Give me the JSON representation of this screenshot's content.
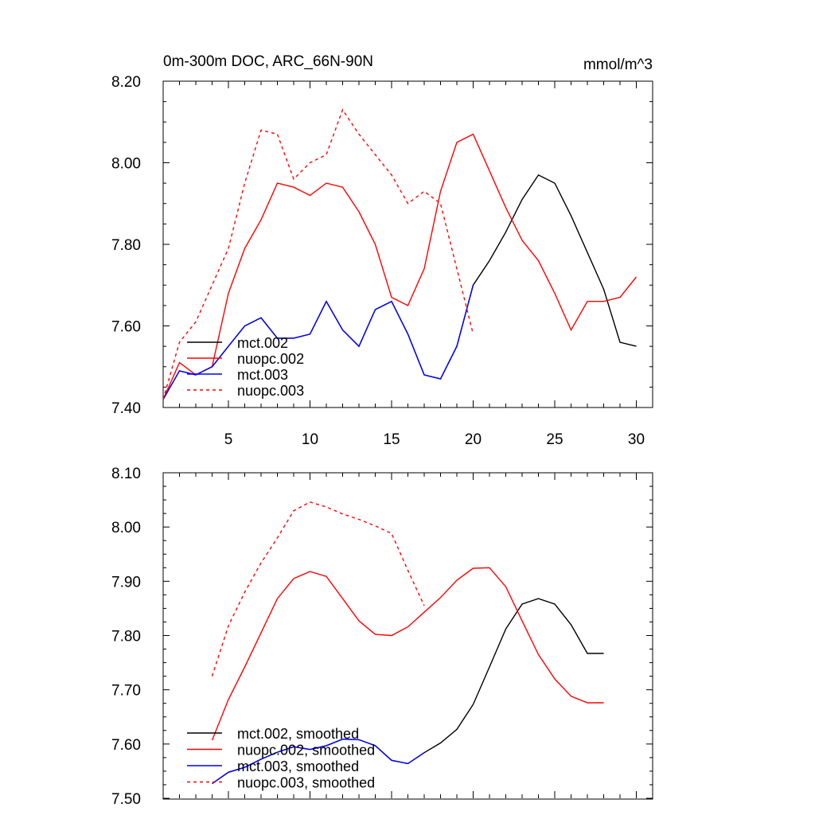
{
  "header": {
    "title": "0m-300m DOC, ARC_66N-90N",
    "units": "mmol/m^3"
  },
  "chart_data": [
    {
      "type": "line",
      "title": "0m-300m DOC, ARC_66N-90N",
      "ylabel_right": "mmol/m^3",
      "xlim": [
        1,
        31
      ],
      "ylim": [
        7.4,
        8.2
      ],
      "x_ticks": [
        5,
        10,
        15,
        20,
        25,
        30
      ],
      "x_tick_labels": [
        "5",
        "10",
        "15",
        "20",
        "25",
        "30"
      ],
      "y_ticks": [
        7.4,
        7.6,
        7.8,
        8.0,
        8.2
      ],
      "y_tick_labels": [
        "7.40",
        "7.60",
        "7.80",
        "8.00",
        "8.20"
      ],
      "grid": false,
      "legend_position": "bottom-left",
      "series": [
        {
          "name": "mct.002",
          "color": "#000000",
          "dash": "solid",
          "x": [
            1,
            2,
            3,
            4,
            5,
            6,
            7,
            8,
            9,
            10,
            11,
            12,
            13,
            14,
            15,
            16,
            17,
            18,
            19,
            20,
            21,
            22,
            23,
            24,
            25,
            26,
            27,
            28,
            29,
            30
          ],
          "y": [
            7.42,
            7.49,
            7.48,
            7.5,
            7.55,
            7.6,
            7.62,
            7.57,
            7.57,
            7.58,
            7.66,
            7.59,
            7.55,
            7.64,
            7.66,
            7.58,
            7.48,
            7.47,
            7.55,
            7.7,
            7.76,
            7.83,
            7.91,
            7.97,
            7.95,
            7.87,
            7.78,
            7.69,
            7.56,
            7.55
          ]
        },
        {
          "name": "nuopc.002",
          "color": "#ff0000",
          "dash": "solid",
          "x": [
            1,
            2,
            3,
            4,
            5,
            6,
            7,
            8,
            9,
            10,
            11,
            12,
            13,
            14,
            15,
            16,
            17,
            18,
            19,
            20,
            21,
            22,
            23,
            24,
            25,
            26,
            27,
            28,
            29,
            30
          ],
          "y": [
            7.42,
            7.51,
            7.48,
            7.5,
            7.68,
            7.79,
            7.86,
            7.95,
            7.94,
            7.92,
            7.95,
            7.94,
            7.88,
            7.8,
            7.67,
            7.65,
            7.74,
            7.93,
            8.05,
            8.07,
            7.98,
            7.89,
            7.81,
            7.76,
            7.68,
            7.59,
            7.66,
            7.66,
            7.67,
            7.72
          ]
        },
        {
          "name": "mct.003",
          "color": "#0000ff",
          "dash": "solid",
          "x": [
            1,
            2,
            3,
            4,
            5,
            6,
            7,
            8,
            9,
            10,
            11,
            12,
            13,
            14,
            15,
            16,
            17,
            18,
            19,
            20
          ],
          "y": [
            7.42,
            7.49,
            7.48,
            7.5,
            7.55,
            7.6,
            7.62,
            7.57,
            7.57,
            7.58,
            7.66,
            7.59,
            7.55,
            7.64,
            7.66,
            7.58,
            7.48,
            7.47,
            7.55,
            7.7
          ]
        },
        {
          "name": "nuopc.003",
          "color": "#ff0000",
          "dash": "dashed",
          "x": [
            1,
            2,
            3,
            4,
            5,
            6,
            7,
            8,
            9,
            10,
            11,
            12,
            13,
            14,
            15,
            16,
            17,
            18,
            19,
            20
          ],
          "y": [
            7.42,
            7.56,
            7.61,
            7.7,
            7.79,
            7.95,
            8.08,
            8.07,
            7.96,
            8.0,
            8.02,
            8.13,
            8.07,
            8.02,
            7.97,
            7.9,
            7.93,
            7.9,
            7.74,
            7.58
          ]
        }
      ]
    },
    {
      "type": "line",
      "xlim": [
        1,
        31
      ],
      "ylim": [
        7.5,
        8.1
      ],
      "x_ticks": [
        5,
        10,
        15,
        20,
        25,
        30
      ],
      "y_ticks": [
        7.5,
        7.6,
        7.7,
        7.8,
        7.9,
        8.0,
        8.1
      ],
      "y_tick_labels": [
        "7.50",
        "7.60",
        "7.70",
        "7.80",
        "7.90",
        "8.00",
        "8.10"
      ],
      "grid": false,
      "legend_position": "bottom-left",
      "series": [
        {
          "name": "mct.002, smoothed",
          "color": "#000000",
          "dash": "solid",
          "x": [
            4,
            5,
            6,
            7,
            8,
            9,
            10,
            11,
            12,
            13,
            14,
            15,
            16,
            17,
            18,
            19,
            20,
            21,
            22,
            23,
            24,
            25,
            26,
            27,
            28
          ],
          "y": [
            7.527,
            7.548,
            7.557,
            7.572,
            7.585,
            7.595,
            7.59,
            7.597,
            7.609,
            7.608,
            7.597,
            7.57,
            7.564,
            7.584,
            7.602,
            7.627,
            7.673,
            7.742,
            7.812,
            7.858,
            7.868,
            7.858,
            7.82,
            7.767,
            7.767
          ]
        },
        {
          "name": "nuopc.002, smoothed",
          "color": "#ff0000",
          "dash": "solid",
          "x": [
            4,
            5,
            6,
            7,
            8,
            9,
            10,
            11,
            12,
            13,
            14,
            15,
            16,
            17,
            18,
            19,
            20,
            21,
            22,
            23,
            24,
            25,
            26,
            27,
            28
          ],
          "y": [
            7.607,
            7.682,
            7.742,
            7.805,
            7.868,
            7.905,
            7.918,
            7.909,
            7.868,
            7.827,
            7.802,
            7.8,
            7.816,
            7.843,
            7.87,
            7.902,
            7.924,
            7.925,
            7.89,
            7.827,
            7.765,
            7.72,
            7.688,
            7.676,
            7.676
          ]
        },
        {
          "name": "mct.003, smoothed",
          "color": "#0000ff",
          "dash": "solid",
          "x": [
            4,
            5,
            6,
            7,
            8,
            9,
            10,
            11,
            12,
            13,
            14,
            15,
            16,
            17
          ],
          "y": [
            7.527,
            7.548,
            7.557,
            7.572,
            7.585,
            7.595,
            7.59,
            7.597,
            7.609,
            7.608,
            7.597,
            7.57,
            7.564,
            7.584
          ]
        },
        {
          "name": "nuopc.003, smoothed",
          "color": "#ff0000",
          "dash": "dashed",
          "x": [
            4,
            5,
            6,
            7,
            8,
            9,
            10,
            11,
            12,
            13,
            14,
            15,
            16,
            17
          ],
          "y": [
            7.725,
            7.818,
            7.88,
            7.934,
            7.98,
            8.03,
            8.046,
            8.037,
            8.024,
            8.014,
            8.002,
            7.988,
            7.92,
            7.855
          ]
        }
      ]
    }
  ]
}
